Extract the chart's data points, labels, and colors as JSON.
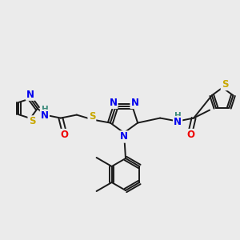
{
  "bg_color": "#ebebeb",
  "bond_color": "#1a1a1a",
  "bond_width": 1.4,
  "atom_colors": {
    "N": "#0000ee",
    "S": "#c8a800",
    "O": "#ee0000",
    "H": "#3a8a7a",
    "C": "#1a1a1a"
  },
  "font_size_atom": 8.5,
  "fig_width": 3.0,
  "fig_height": 3.0,
  "dpi": 100
}
